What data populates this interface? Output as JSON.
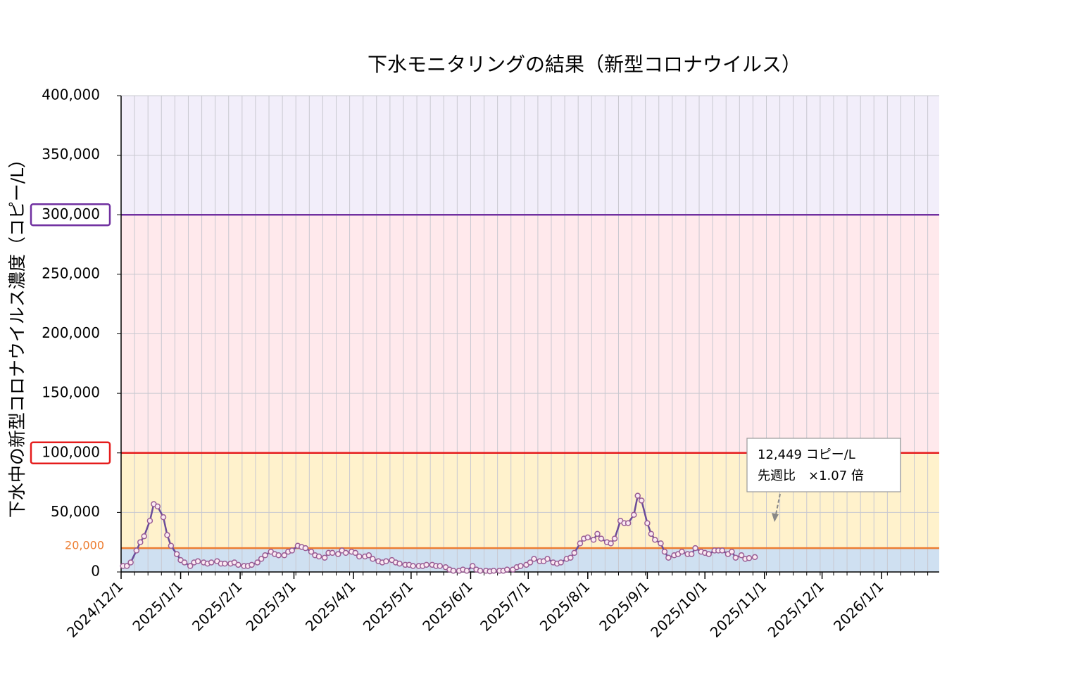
{
  "chart_data": {
    "type": "line",
    "title": "下水モニタリングの結果（新型コロナウイルス）",
    "y_label": "下水中の新型コロナウイルス濃度（コピー/L）",
    "color": "#6b4c9a",
    "marker_fill": "#fbeaf3",
    "marker_stroke": "#9a5e95",
    "xlim": [
      "2024/12/1",
      "2026/1/31"
    ],
    "xticks": [
      "2024/12/1",
      "2025/1/1",
      "2025/2/1",
      "2025/3/1",
      "2025/4/1",
      "2025/5/1",
      "2025/6/1",
      "2025/7/1",
      "2025/8/1",
      "2025/9/1",
      "2025/10/1",
      "2025/11/1",
      "2025/12/1",
      "2026/1/1"
    ],
    "ylim": [
      0,
      400000
    ],
    "yticks": [
      {
        "value": 0,
        "label": "0"
      },
      {
        "value": 50000,
        "label": "50,000"
      },
      {
        "value": 100000,
        "label": "100,000"
      },
      {
        "value": 150000,
        "label": "150,000"
      },
      {
        "value": 200000,
        "label": "200,000"
      },
      {
        "value": 250000,
        "label": "250,000"
      },
      {
        "value": 300000,
        "label": "300,000"
      },
      {
        "value": 350000,
        "label": "350,000"
      },
      {
        "value": 400000,
        "label": "400,000"
      }
    ],
    "grid": true,
    "bands": [
      {
        "from": 0,
        "to": 20000,
        "color": "#cfe0f1"
      },
      {
        "from": 20000,
        "to": 100000,
        "color": "#fff2cc"
      },
      {
        "from": 100000,
        "to": 300000,
        "color": "#ffe9ec"
      },
      {
        "from": 300000,
        "to": 400000,
        "color": "#f2eefa"
      }
    ],
    "thresholds": [
      {
        "value": 20000,
        "label": "20,000",
        "color": "#ed7d31"
      },
      {
        "value": 100000,
        "color": "#e51c1c"
      },
      {
        "value": 300000,
        "color": "#7030a0"
      }
    ],
    "annotation": {
      "lines": [
        "12,449 コピー/L",
        "先週比　×1.07 倍"
      ]
    },
    "x": [
      "2024/12/2",
      "2024/12/4",
      "2024/12/6",
      "2024/12/9",
      "2024/12/11",
      "2024/12/13",
      "2024/12/16",
      "2024/12/18",
      "2024/12/20",
      "2024/12/23",
      "2024/12/25",
      "2024/12/27",
      "2024/12/30",
      "2025/1/1",
      "2025/1/3",
      "2025/1/6",
      "2025/1/8",
      "2025/1/10",
      "2025/1/13",
      "2025/1/15",
      "2025/1/17",
      "2025/1/20",
      "2025/1/22",
      "2025/1/24",
      "2025/1/27",
      "2025/1/29",
      "2025/1/31",
      "2025/2/3",
      "2025/2/5",
      "2025/2/7",
      "2025/2/10",
      "2025/2/12",
      "2025/2/14",
      "2025/2/17",
      "2025/2/19",
      "2025/2/21",
      "2025/2/24",
      "2025/2/26",
      "2025/2/28",
      "2025/3/3",
      "2025/3/5",
      "2025/3/7",
      "2025/3/10",
      "2025/3/12",
      "2025/3/14",
      "2025/3/17",
      "2025/3/19",
      "2025/3/21",
      "2025/3/24",
      "2025/3/26",
      "2025/3/28",
      "2025/3/31",
      "2025/4/2",
      "2025/4/4",
      "2025/4/7",
      "2025/4/9",
      "2025/4/11",
      "2025/4/14",
      "2025/4/16",
      "2025/4/18",
      "2025/4/21",
      "2025/4/23",
      "2025/4/25",
      "2025/4/28",
      "2025/4/30",
      "2025/5/2",
      "2025/5/5",
      "2025/5/7",
      "2025/5/9",
      "2025/5/12",
      "2025/5/14",
      "2025/5/16",
      "2025/5/19",
      "2025/5/21",
      "2025/5/23",
      "2025/5/26",
      "2025/5/28",
      "2025/5/30",
      "2025/6/2",
      "2025/6/4",
      "2025/6/6",
      "2025/6/9",
      "2025/6/11",
      "2025/6/13",
      "2025/6/16",
      "2025/6/18",
      "2025/6/20",
      "2025/6/23",
      "2025/6/25",
      "2025/6/27",
      "2025/6/30",
      "2025/7/2",
      "2025/7/4",
      "2025/7/7",
      "2025/7/9",
      "2025/7/11",
      "2025/7/14",
      "2025/7/16",
      "2025/7/18",
      "2025/7/21",
      "2025/7/23",
      "2025/7/25",
      "2025/7/28",
      "2025/7/30",
      "2025/8/1",
      "2025/8/4",
      "2025/8/6",
      "2025/8/8",
      "2025/8/11",
      "2025/8/13",
      "2025/8/15",
      "2025/8/18",
      "2025/8/20",
      "2025/8/22",
      "2025/8/25",
      "2025/8/27",
      "2025/8/29",
      "2025/9/1",
      "2025/9/3",
      "2025/9/5",
      "2025/9/8",
      "2025/9/10",
      "2025/9/12",
      "2025/9/15",
      "2025/9/17",
      "2025/9/19",
      "2025/9/22",
      "2025/9/24",
      "2025/9/26",
      "2025/9/29",
      "2025/10/1",
      "2025/10/3",
      "2025/10/6",
      "2025/10/8",
      "2025/10/10",
      "2025/10/13",
      "2025/10/15",
      "2025/10/17",
      "2025/10/20",
      "2025/10/22",
      "2025/10/24",
      "2025/10/27"
    ],
    "values": [
      5000,
      5000,
      8000,
      18000,
      25000,
      30000,
      43000,
      57000,
      55000,
      46000,
      31000,
      22000,
      15000,
      10000,
      8000,
      5000,
      8000,
      9000,
      8000,
      7000,
      8000,
      9000,
      7000,
      7000,
      7000,
      8000,
      6000,
      5000,
      5000,
      6000,
      8000,
      11000,
      14000,
      17000,
      15000,
      14000,
      14000,
      17000,
      18000,
      22000,
      21000,
      20000,
      17000,
      14000,
      13000,
      12000,
      16000,
      16000,
      15000,
      18000,
      16000,
      17000,
      16000,
      13000,
      13000,
      14000,
      11000,
      9000,
      8000,
      9000,
      10000,
      8000,
      7000,
      6000,
      6000,
      5000,
      5000,
      5000,
      6000,
      6000,
      5000,
      5000,
      4000,
      2000,
      1000,
      1000,
      2000,
      1000,
      5000,
      2000,
      1000,
      1000,
      500,
      1000,
      1000,
      1000,
      2000,
      2000,
      4000,
      5000,
      6000,
      8000,
      11000,
      9000,
      9000,
      11000,
      8000,
      7000,
      8000,
      11000,
      12000,
      16000,
      24000,
      28000,
      29000,
      27000,
      32000,
      28000,
      25000,
      24000,
      28000,
      43000,
      41000,
      41000,
      48000,
      64000,
      60000,
      41000,
      32000,
      27000,
      24000,
      17000,
      12000,
      14000,
      15000,
      17000,
      15000,
      15000,
      20000,
      17000,
      16000,
      15000,
      18000,
      18000,
      18000,
      15000,
      17000,
      12000,
      14000,
      11000,
      11634,
      12449
    ]
  }
}
